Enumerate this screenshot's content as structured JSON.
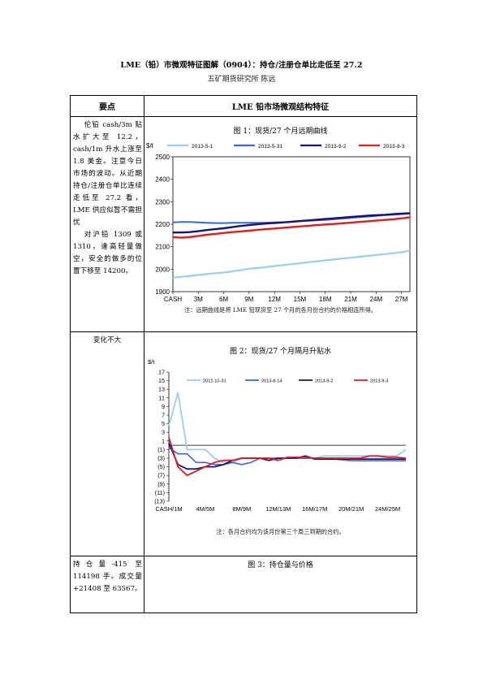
{
  "document": {
    "title": "LME（铅）市微观特征图解（0904）：持仓/注册仓单比走低至 27.2",
    "author": "五矿期货研究所    陈远"
  },
  "table": {
    "header_left": "要点",
    "header_right": "LME 铅市场微观结构特征",
    "row1_left_p1": "伦铅 cash/3m 贴水扩大至 12.2，cash/1m 升水上涨至 1.8 美金。注意今日市场的波动。从近期持仓/注册仓单比连续走低至 27.2 看，LME 供应似暂不需担忧",
    "row1_left_p2": "对沪铅 1309 或 1310，逢高轻量做空，安全的做多的位置下移至 14200。",
    "row2_left": "变化不大",
    "row3_left": "持仓量-415 至 114198 手。成交量+21408 至 63567。",
    "fig1_title": "图 1：现货/27 个月远期曲线",
    "fig1_note": "注：远期曲线是将 LME 铅现货至 27 个月的各月份合约的价格相连所得。",
    "fig2_title": "图 2：现货/27 个月隔月升贴水",
    "fig2_note": "注：各月合约均为该月份第三个周三到期的合约。",
    "fig3_title": "图 3：持仓量与价格"
  },
  "chart_data": [
    {
      "type": "line",
      "ylabel": "$/t",
      "ylim": [
        1900,
        2500
      ],
      "yticks": [
        1900,
        2000,
        2100,
        2200,
        2300,
        2400,
        2500
      ],
      "x_tick_labels": [
        "CASH",
        "3M",
        "6M",
        "9M",
        "12M",
        "15M",
        "18M",
        "21M",
        "24M",
        "27M"
      ],
      "legend_position": "top",
      "series": [
        {
          "name": "2013-5-1",
          "color": "#99ccee",
          "width": 2.2,
          "values": [
            1962,
            1966,
            1970,
            1974,
            1978,
            1982,
            1985,
            1990,
            1996,
            2002,
            2005,
            2009,
            2014,
            2018,
            2022,
            2026,
            2031,
            2035,
            2039,
            2043,
            2047,
            2051,
            2055,
            2059,
            2063,
            2067,
            2071,
            2075,
            2083
          ]
        },
        {
          "name": "2013-5-31",
          "color": "#3a66d6",
          "width": 2.0,
          "values": [
            2208,
            2210,
            2210,
            2208,
            2206,
            2205,
            2205,
            2206,
            2206,
            2206,
            2206,
            2207,
            2208,
            2209,
            2211,
            2213,
            2215,
            2217,
            2219,
            2222,
            2225,
            2228,
            2231,
            2234,
            2237,
            2240,
            2242,
            2245,
            2247
          ]
        },
        {
          "name": "2013-9-2",
          "color": "#14147a",
          "width": 2.4,
          "values": [
            2163,
            2163,
            2165,
            2169,
            2174,
            2178,
            2182,
            2187,
            2192,
            2196,
            2200,
            2203,
            2205,
            2208,
            2211,
            2214,
            2217,
            2220,
            2223,
            2226,
            2229,
            2232,
            2235,
            2238,
            2240,
            2242,
            2245,
            2247,
            2249
          ]
        },
        {
          "name": "2013-9-3",
          "color": "#e41a1c",
          "width": 2.4,
          "values": [
            2143,
            2140,
            2143,
            2148,
            2153,
            2157,
            2161,
            2165,
            2168,
            2171,
            2175,
            2178,
            2181,
            2184,
            2187,
            2190,
            2193,
            2196,
            2199,
            2201,
            2204,
            2207,
            2210,
            2213,
            2216,
            2219,
            2222,
            2226,
            2231
          ]
        }
      ]
    },
    {
      "type": "line",
      "ylabel": "$/t",
      "ylim": [
        -13,
        17
      ],
      "y_tick_labels": [
        "17",
        "15",
        "13",
        "11",
        "9",
        "7",
        "5",
        "3",
        "1",
        "(1)",
        "(3)",
        "(5)",
        "(7)",
        "(9)",
        "(11)",
        "(13)"
      ],
      "x_tick_labels": [
        "CASH/1M",
        "4M/5M",
        "8M/9M",
        "12M/13M",
        "16M/17M",
        "20M/21M",
        "24M/25M"
      ],
      "legend_position": "top",
      "series": [
        {
          "name": "2012-10-31",
          "color": "#99ccee",
          "width": 1.8,
          "values": [
            4.5,
            12.2,
            -1,
            -1,
            -1,
            -3,
            -4,
            -4,
            -3,
            -3,
            -3,
            -3,
            -3,
            -3,
            -3,
            -3,
            -3,
            -2.5,
            -2.5,
            -2.5,
            -2.5,
            -2.5,
            -2.5,
            -2.5,
            -2.5,
            -2.5,
            -1
          ]
        },
        {
          "name": "2013-8-14",
          "color": "#3a66d6",
          "width": 1.6,
          "values": [
            -0.5,
            -2,
            -2,
            -4,
            -4,
            -4.5,
            -4.5,
            -4,
            -4.5,
            -4,
            -3,
            -3,
            -3,
            -3,
            -3,
            -3,
            -3,
            -3,
            -3.2,
            -3.4,
            -3.6,
            -3.6,
            -3.6,
            -3.6,
            -3.6,
            -3.6,
            -3.6
          ]
        },
        {
          "name": "2013-9-2",
          "color": "#14147a",
          "width": 1.8,
          "values": [
            0.5,
            -4.5,
            -5.5,
            -5.5,
            -5,
            -5,
            -4.5,
            -3.5,
            -3,
            -3,
            -3,
            -3.5,
            -3,
            -3,
            -3,
            -2.5,
            -3.2,
            -3.2,
            -3.2,
            -3.2,
            -3.2,
            -3.2,
            -3.2,
            -3.2,
            -3.2,
            -3.2,
            -3.2
          ]
        },
        {
          "name": "2013-9-3",
          "color": "#e41a1c",
          "width": 1.8,
          "values": [
            1.8,
            -5,
            -7,
            -6,
            -5,
            -4,
            -3.5,
            -3.5,
            -3,
            -3,
            -3,
            -3,
            -3.5,
            -2.8,
            -2.8,
            -2.8,
            -3,
            -3,
            -3,
            -3,
            -3,
            -3,
            -2.5,
            -2.5,
            -2.8,
            -2.8,
            -3
          ]
        }
      ]
    }
  ]
}
